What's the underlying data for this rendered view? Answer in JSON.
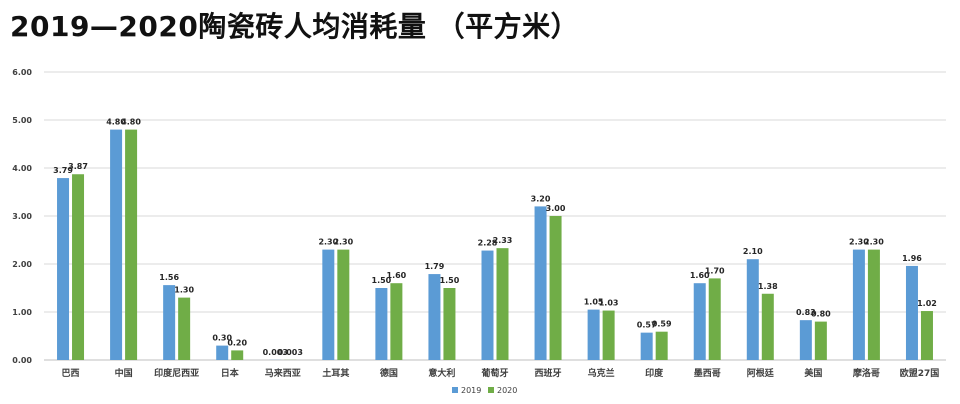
{
  "chart_data": {
    "type": "bar",
    "title": "2019—2020陶瓷砖人均消耗量  （平方米）",
    "xlabel": "",
    "ylabel": "",
    "ylim": [
      0,
      6
    ],
    "y_ticks": [
      "0.00",
      "1.00",
      "2.00",
      "3.00",
      "4.00",
      "5.00",
      "6.00"
    ],
    "grid": true,
    "legend_position": "bottom-center",
    "categories": [
      "巴西",
      "中国",
      "印度尼西亚",
      "日本",
      "马来西亚",
      "土耳其",
      "德国",
      "意大利",
      "葡萄牙",
      "西班牙",
      "乌克兰",
      "印度",
      "墨西哥",
      "阿根廷",
      "美国",
      "摩洛哥",
      "欧盟27国"
    ],
    "series": [
      {
        "name": "2019",
        "color": "#5B9BD5",
        "values": [
          3.79,
          4.8,
          1.56,
          0.3,
          0.003,
          2.3,
          1.5,
          1.79,
          2.28,
          3.2,
          1.05,
          0.57,
          1.6,
          2.1,
          0.83,
          2.3,
          1.96
        ],
        "labels": [
          "3.79",
          "4.80",
          "1.56",
          "0.30",
          "0.003",
          "2.30",
          "1.50",
          "1.79",
          "2.28",
          "3.20",
          "1.05",
          "0.57",
          "1.60",
          "2.10",
          "0.83",
          "2.30",
          "1.96"
        ]
      },
      {
        "name": "2020",
        "color": "#70AD47",
        "values": [
          3.87,
          4.8,
          1.3,
          0.2,
          0.003,
          2.3,
          1.6,
          1.5,
          2.33,
          3.0,
          1.03,
          0.59,
          1.7,
          1.38,
          0.8,
          2.3,
          1.02
        ],
        "labels": [
          "3.87",
          "4.80",
          "1.30",
          "0.20",
          "0.003",
          "2.30",
          "1.60",
          "1.50",
          "2.33",
          "3.00",
          "1.03",
          "0.59",
          "1.70",
          "1.38",
          "0.80",
          "2.30",
          "1.02"
        ]
      }
    ]
  }
}
